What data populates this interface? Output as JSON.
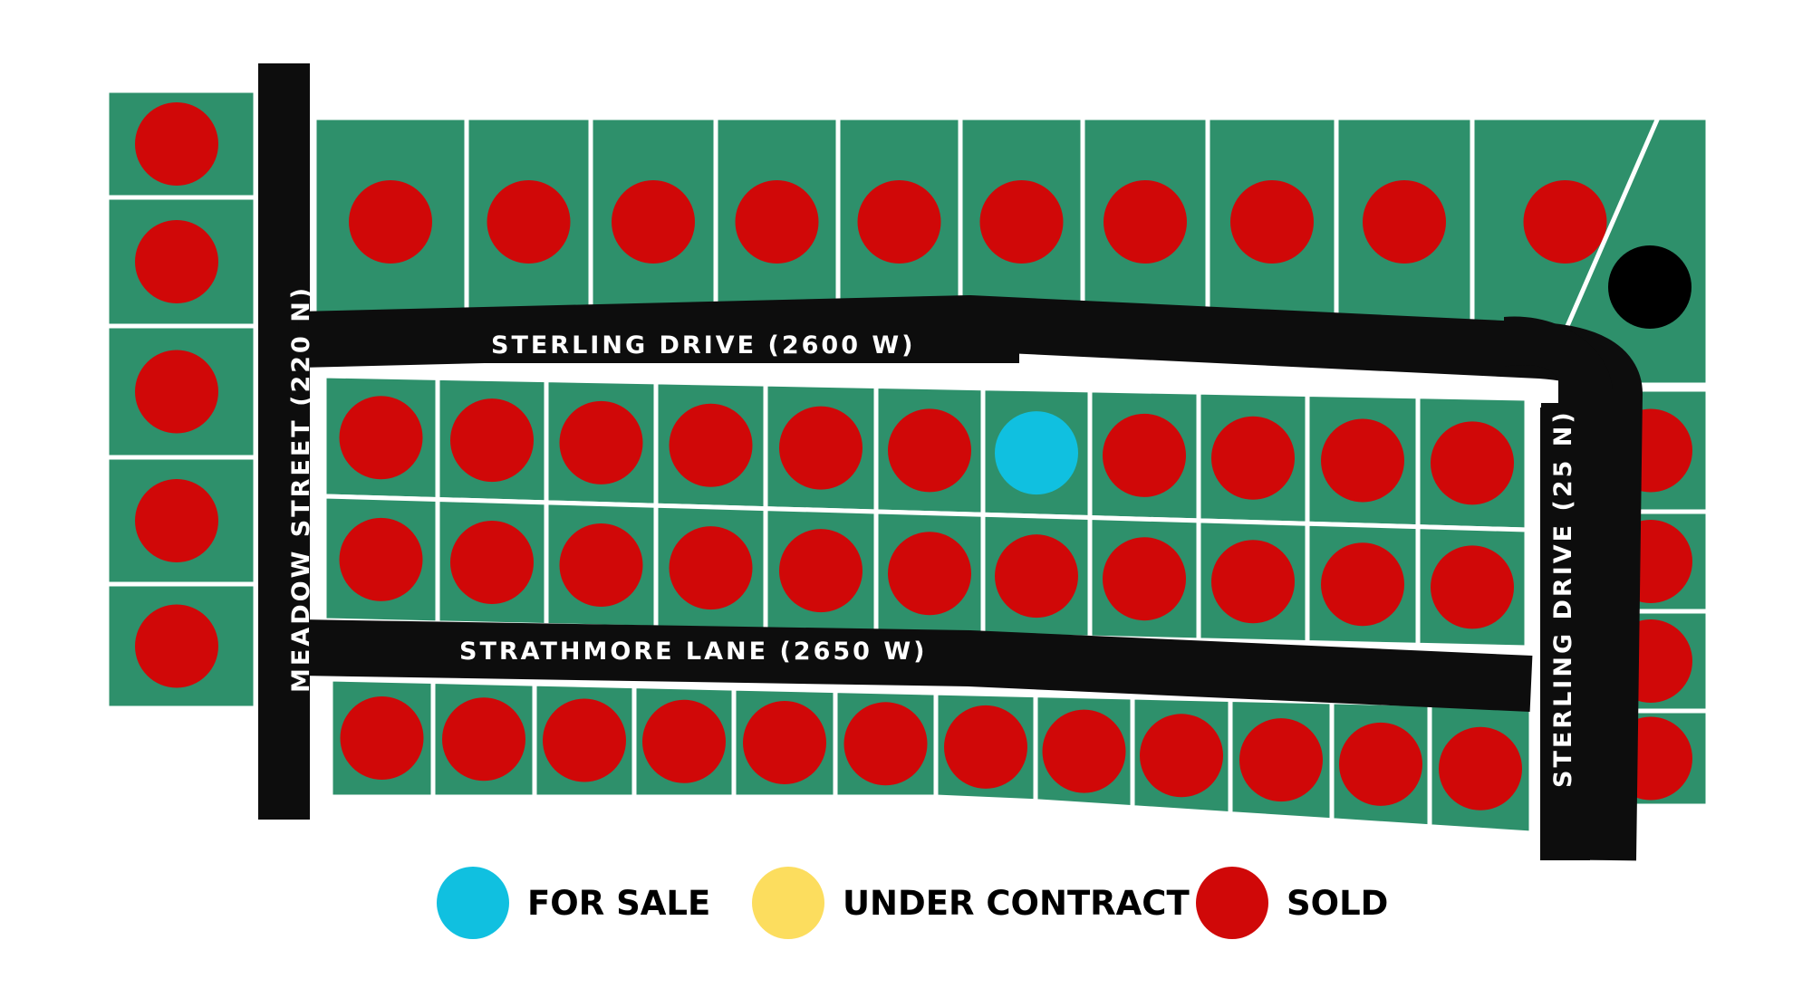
{
  "colors": {
    "lot": "#2e906b",
    "lot_border": "#ffffff",
    "road": "#0d0d0d",
    "for_sale": "#10c0e0",
    "under_contract": "#fcdd5e",
    "sold": "#d00808",
    "other_marker": "#000000"
  },
  "roads": {
    "meadow": "MEADOW STREET (220 N)",
    "sterling_top": "STERLING DRIVE (2600 W)",
    "strathmore": "STRATHMORE LANE (2650 W)",
    "sterling_side": "STERLING DRIVE (25 N)"
  },
  "legend": [
    {
      "key": "for_sale",
      "label": "FOR SALE"
    },
    {
      "key": "under_contract",
      "label": "UNDER CONTRACT"
    },
    {
      "key": "sold",
      "label": "SOLD"
    }
  ],
  "lot_status": {
    "west_column": [
      "sold",
      "sold",
      "sold",
      "sold",
      "sold"
    ],
    "north_row": [
      "sold",
      "sold",
      "sold",
      "sold",
      "sold",
      "sold",
      "sold",
      "sold",
      "sold",
      "sold",
      "other"
    ],
    "middle_north": [
      "sold",
      "sold",
      "sold",
      "sold",
      "sold",
      "sold",
      "for_sale",
      "sold",
      "sold",
      "sold",
      "sold"
    ],
    "middle_south": [
      "sold",
      "sold",
      "sold",
      "sold",
      "sold",
      "sold",
      "sold",
      "sold",
      "sold",
      "sold",
      "sold"
    ],
    "south_row": [
      "sold",
      "sold",
      "sold",
      "sold",
      "sold",
      "sold",
      "sold",
      "sold",
      "sold",
      "sold",
      "sold",
      "sold"
    ],
    "east_column": [
      "sold",
      "sold",
      "sold",
      "sold"
    ]
  }
}
